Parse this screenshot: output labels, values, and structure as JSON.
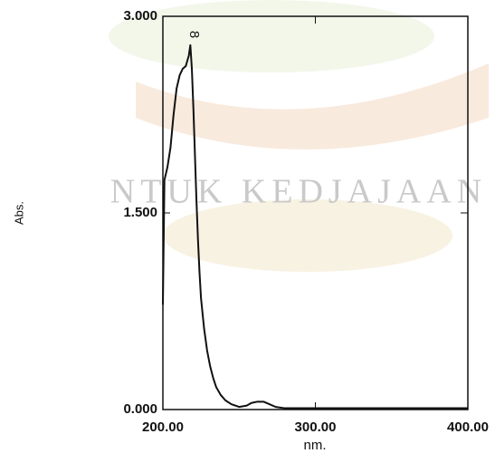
{
  "chart_data": {
    "type": "line",
    "watermark": "NTUK KEDJAJAAN",
    "annotation": "8",
    "xlabel": "nm.",
    "ylabel": "Abs.",
    "x": [
      200,
      201,
      203,
      205,
      207,
      209,
      211,
      213,
      215,
      217,
      218,
      219,
      220,
      221,
      222,
      223,
      224,
      225,
      227,
      229,
      231,
      233,
      235,
      238,
      241,
      245,
      250,
      255,
      258,
      262,
      266,
      270,
      274,
      280,
      300,
      350,
      400
    ],
    "series": [
      {
        "color": "#111111",
        "values": [
          0.8,
          1.75,
          1.85,
          2.0,
          2.25,
          2.45,
          2.55,
          2.6,
          2.62,
          2.7,
          2.78,
          2.6,
          2.3,
          1.95,
          1.6,
          1.3,
          1.05,
          0.85,
          0.62,
          0.45,
          0.33,
          0.24,
          0.17,
          0.11,
          0.07,
          0.04,
          0.02,
          0.03,
          0.05,
          0.06,
          0.06,
          0.04,
          0.02,
          0.01,
          0.01,
          0.01,
          0.01
        ]
      }
    ],
    "xlim": [
      200,
      400
    ],
    "ylim": [
      0,
      3
    ],
    "xticks": [
      {
        "value": 200,
        "label": "200.00"
      },
      {
        "value": 300,
        "label": "300.00"
      },
      {
        "value": 400,
        "label": "400.00"
      }
    ],
    "yticks": [
      {
        "value": 0,
        "label": "0.000"
      },
      {
        "value": 1.5,
        "label": "1.500"
      },
      {
        "value": 3,
        "label": "3.000"
      }
    ]
  }
}
